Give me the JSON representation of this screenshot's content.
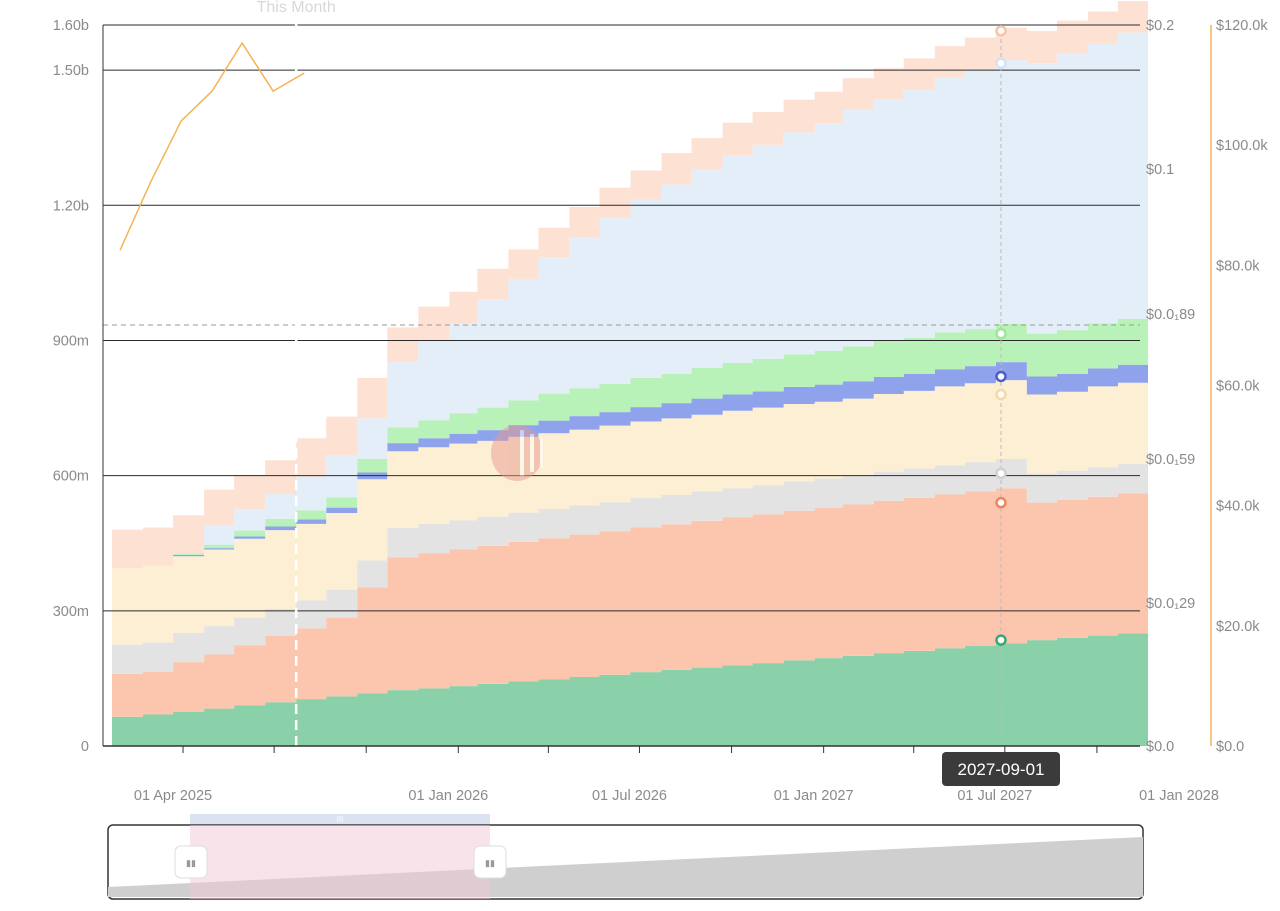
{
  "colors": {
    "stack": [
      "#8ad0a8",
      "#fcc6ae",
      "#e3e3e3",
      "#fdefd4",
      "#8fa3ec",
      "#b8f2b8",
      "#e3eef9",
      "#fde2d4"
    ],
    "line_price": "#f6b355",
    "gridline": "#2b2b2b",
    "axis_text": "#8a8a8a",
    "tooltip_bg": "#3b3b3b",
    "tooltip_text": "#ffffff",
    "slider_window": "#f4c7d6",
    "slider_track": "#cfcfcf"
  },
  "annotations": {
    "this_month_label": "This Month",
    "tooltip_date": "2027-09-01"
  },
  "slider": {
    "handle_glyph": "▮▮",
    "top_glyph": "III"
  },
  "chart_data": {
    "type": "area",
    "step": true,
    "x": [
      "2025-03-01",
      "2025-04-01",
      "2025-05-01",
      "2025-06-01",
      "2025-07-01",
      "2025-08-01",
      "2025-09-01",
      "2025-10-01",
      "2025-11-01",
      "2025-12-01",
      "2026-01-01",
      "2026-02-01",
      "2026-03-01",
      "2026-04-01",
      "2026-05-01",
      "2026-06-01",
      "2026-07-01",
      "2026-08-01",
      "2026-09-01",
      "2026-10-01",
      "2026-11-01",
      "2026-12-01",
      "2027-01-01",
      "2027-02-01",
      "2027-03-01",
      "2027-04-01",
      "2027-05-01",
      "2027-06-01",
      "2027-07-01",
      "2027-08-01",
      "2027-09-01",
      "2027-10-01",
      "2027-11-01",
      "2027-12-01"
    ],
    "series": [
      {
        "values": [
          65,
          70,
          76,
          83,
          90,
          97,
          104,
          110,
          117,
          124,
          128,
          133,
          138,
          143,
          148,
          153,
          158,
          164,
          169,
          174,
          179,
          184,
          190,
          195,
          200,
          206,
          211,
          217,
          222,
          228,
          235,
          240,
          245,
          250
        ]
      },
      {
        "values": [
          95,
          95,
          110,
          120,
          133,
          147,
          157,
          175,
          235,
          295,
          300,
          303,
          306,
          310,
          313,
          316,
          318,
          321,
          323,
          326,
          328,
          330,
          332,
          334,
          336,
          338,
          340,
          341,
          343,
          344,
          305,
          306,
          308,
          311
        ]
      },
      {
        "values": [
          65,
          65,
          65,
          63,
          62,
          60,
          62,
          62,
          60,
          65,
          65,
          65,
          65,
          65,
          65,
          65,
          65,
          65,
          65,
          65,
          65,
          65,
          65,
          65,
          65,
          65,
          65,
          65,
          65,
          65,
          65,
          65,
          65,
          65
        ]
      },
      {
        "values": [
          170,
          170,
          170,
          170,
          175,
          175,
          170,
          170,
          180,
          170,
          170,
          170,
          168,
          168,
          168,
          168,
          170,
          170,
          170,
          170,
          172,
          172,
          172,
          170,
          170,
          172,
          172,
          175,
          175,
          175,
          175,
          175,
          180,
          180
        ]
      },
      {
        "values": [
          0,
          0,
          3,
          3,
          5,
          8,
          10,
          12,
          15,
          18,
          20,
          22,
          24,
          26,
          28,
          30,
          30,
          32,
          34,
          36,
          36,
          36,
          38,
          38,
          38,
          38,
          38,
          38,
          38,
          40,
          40,
          40,
          40,
          40
        ]
      },
      {
        "values": [
          0,
          0,
          3,
          8,
          13,
          17,
          20,
          23,
          30,
          35,
          40,
          45,
          50,
          55,
          60,
          62,
          63,
          65,
          65,
          68,
          70,
          72,
          72,
          75,
          78,
          80,
          80,
          82,
          82,
          85,
          95,
          97,
          100,
          102
        ]
      },
      {
        "values": [
          0,
          0,
          0,
          42,
          47,
          55,
          75,
          92,
          90,
          145,
          177,
          200,
          240,
          270,
          303,
          335,
          370,
          395,
          420,
          440,
          460,
          475,
          493,
          505,
          525,
          535,
          550,
          565,
          575,
          585,
          600,
          615,
          620,
          635
        ]
      },
      {
        "values": [
          85,
          85,
          85,
          80,
          77,
          75,
          85,
          87,
          90,
          77,
          75,
          70,
          68,
          65,
          65,
          67,
          65,
          65,
          70,
          70,
          73,
          73,
          72,
          70,
          70,
          70,
          70,
          70,
          72,
          72,
          72,
          72,
          72,
          70
        ]
      },
      {
        "values": [
          1.1,
          1.15,
          1.1,
          1.25,
          1.15,
          1.15,
          1.1,
          1.05,
          1.03,
          0.97,
          0.96,
          0.95,
          0.94,
          0.93,
          0.92,
          0.91,
          0.9,
          0.89,
          0.88,
          0.87,
          0.86,
          0.85,
          0.84,
          0.83,
          0.82,
          0.81,
          0.8,
          0.79,
          0.78,
          0.77,
          0.76,
          0.75,
          0.74,
          0.73
        ],
        "axis": "y3"
      }
    ],
    "price_line": {
      "x": [
        "2025-03-01",
        "2025-04-01",
        "2025-05-01",
        "2025-06-01",
        "2025-07-01",
        "2025-08-01",
        "2025-09-01"
      ],
      "values": [
        82500,
        94000,
        104000,
        109000,
        117000,
        109000,
        112000
      ]
    },
    "y1_ticks": [
      "0",
      "300m",
      "600m",
      "900m",
      "1.20b",
      "1.50b",
      "1.60b"
    ],
    "y1_tick_values": [
      0,
      300,
      600,
      900,
      1200,
      1500,
      1600
    ],
    "y1_lim": [
      0,
      1600
    ],
    "y2_ticks": [
      "$0.0",
      "$0.0₁29",
      "$0.0₁59",
      "$0.0₁89",
      "$0.1",
      "$0.2"
    ],
    "y3_ticks": [
      "$0.0",
      "$20.0k",
      "$40.0k",
      "$60.0k",
      "$80.0k",
      "$100.0k",
      "$120.0k"
    ],
    "y3_lim": [
      0,
      120000
    ],
    "x_tick_labels": [
      {
        "label": "01 Apr 2025",
        "date": "2025-04-01"
      },
      {
        "label": "01 Jan 2026",
        "date": "2026-01-01"
      },
      {
        "label": "01 Jul 2026",
        "date": "2026-07-01"
      },
      {
        "label": "01 Jan 2027",
        "date": "2027-01-01"
      },
      {
        "label": "01 Jul 2027",
        "date": "2027-07-01"
      },
      {
        "label": "01 Jan 2028",
        "date": "2028-01-01"
      }
    ],
    "x_lim": [
      "2025-03-01",
      "2028-01-01"
    ],
    "this_month": "2025-09-01",
    "hover_date": "2027-09-01",
    "legend": "none",
    "grid": true
  }
}
